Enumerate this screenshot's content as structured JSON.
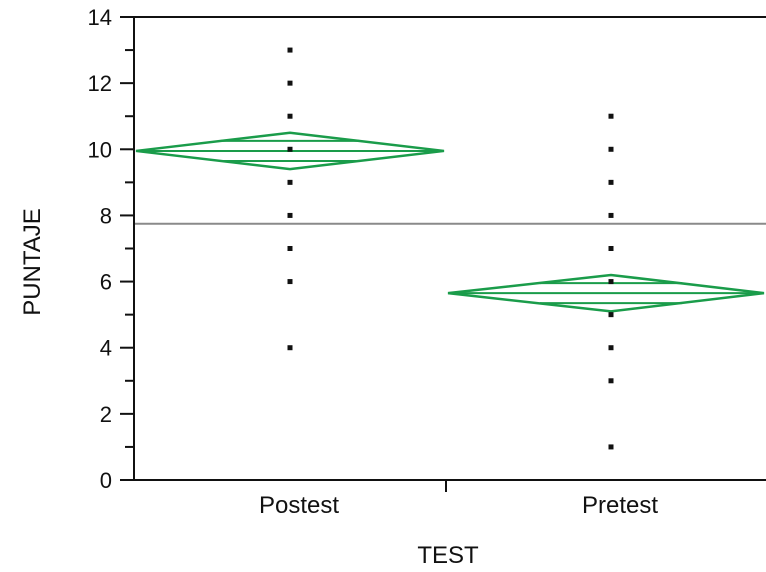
{
  "chart_data": {
    "type": "scatter",
    "subtype": "means-diamonds",
    "title": "",
    "xlabel": "TEST",
    "ylabel": "PUNTAJE",
    "categories": [
      "Postest",
      "Pretest"
    ],
    "ylim": [
      0,
      14
    ],
    "yticks": [
      0,
      2,
      4,
      6,
      8,
      10,
      12,
      14
    ],
    "ytick_labels": [
      "0",
      "2",
      "4",
      "6",
      "8",
      "10",
      "12",
      "14"
    ],
    "grand_mean": 7.75,
    "points": [
      {
        "category": "Postest",
        "values": [
          4,
          6,
          7,
          8,
          9,
          10,
          11,
          12,
          13
        ]
      },
      {
        "category": "Pretest",
        "values": [
          1,
          3,
          4,
          5,
          6,
          7,
          8,
          9,
          10,
          11
        ]
      }
    ],
    "diamonds": [
      {
        "category": "Postest",
        "mean": 9.95,
        "upper": 10.5,
        "lower": 9.4
      },
      {
        "category": "Pretest",
        "mean": 5.65,
        "upper": 6.2,
        "lower": 5.1
      }
    ],
    "grid": false,
    "colors": {
      "diamond": "#1a9c4a",
      "grand_mean_line": "#8a8a8a",
      "points": "#111111",
      "axis": "#111111"
    }
  }
}
